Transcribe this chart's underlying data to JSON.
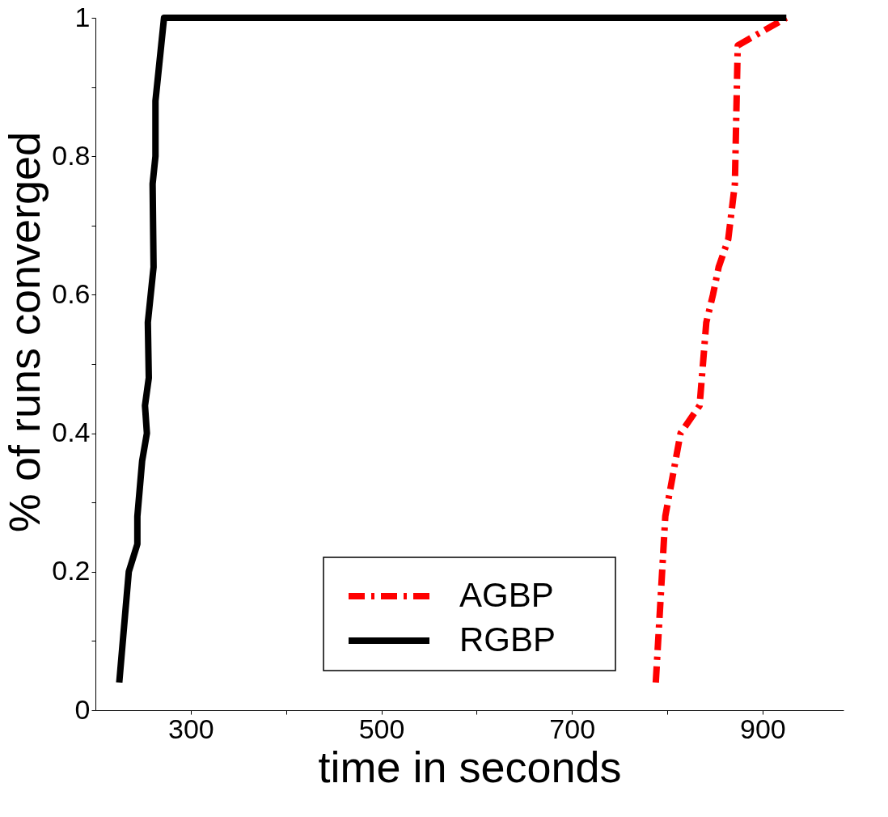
{
  "chart_data": {
    "type": "line",
    "xlabel": "time in seconds",
    "ylabel": "% of runs converged",
    "xlim": [
      200,
      985
    ],
    "ylim": [
      0,
      1
    ],
    "xticks": [
      300,
      {
        "value": 400,
        "label": null
      },
      500,
      {
        "value": 600,
        "label": null
      },
      700,
      {
        "value": 800,
        "label": null
      },
      900
    ],
    "yticks": [
      0,
      {
        "value": 0.1,
        "label": null
      },
      0.2,
      {
        "value": 0.3,
        "label": null
      },
      0.4,
      {
        "value": 0.5,
        "label": null
      },
      0.6,
      {
        "value": 0.7,
        "label": null
      },
      0.8,
      {
        "value": 0.9,
        "label": null
      },
      1
    ],
    "grid": false,
    "legend": "bottom",
    "marker": "none",
    "series": [
      {
        "name": "AGBP",
        "color": "#ff0000",
        "line_style": "dashdot",
        "x": [
          788,
          798,
          814,
          834,
          841,
          848,
          854,
          864,
          871,
          874,
          925
        ],
        "values": [
          0.04,
          0.28,
          0.4,
          0.44,
          0.56,
          0.6,
          0.64,
          0.68,
          0.76,
          0.96,
          1
        ]
      },
      {
        "name": "RGBP",
        "color": "#000000",
        "line_style": "solid",
        "x": [
          225,
          235,
          244,
          244,
          249,
          254,
          252,
          256,
          255,
          261,
          260,
          263,
          263,
          269,
          272,
          925
        ],
        "values": [
          0.04,
          0.2,
          0.24,
          0.28,
          0.36,
          0.4,
          0.44,
          0.48,
          0.56,
          0.64,
          0.76,
          0.8,
          0.88,
          0.96,
          1,
          1
        ]
      }
    ]
  }
}
